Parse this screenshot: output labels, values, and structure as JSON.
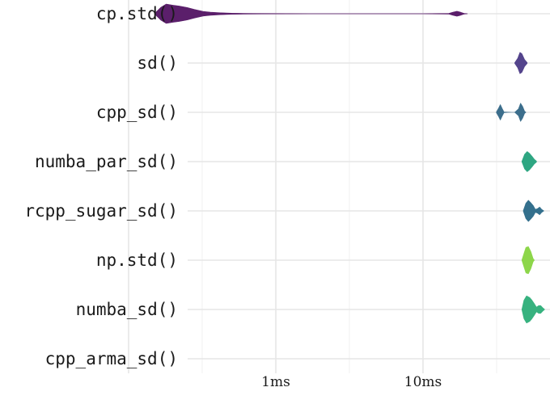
{
  "chart_data": {
    "type": "violin",
    "title": "",
    "xlabel": "",
    "ylabel": "",
    "x_scale": "log",
    "x_range_ms": [
      0.1,
      120
    ],
    "x_ticks": [
      "1ms",
      "10ms"
    ],
    "grid": true,
    "legend": "none",
    "categories": [
      "cp.std()",
      "sd()",
      "cpp_sd()",
      "numba_par_sd()",
      "rcpp_sugar_sd()",
      "np.std()",
      "numba_sd()",
      "cpp_arma_sd()"
    ],
    "series": [
      {
        "category": "cp.std()",
        "color": "#5b1f6b",
        "violin": [
          [
            0.15,
            0.01
          ],
          [
            0.165,
            0.32
          ],
          [
            0.18,
            0.5
          ],
          [
            0.2,
            0.44
          ],
          [
            0.22,
            0.4
          ],
          [
            0.25,
            0.32
          ],
          [
            0.28,
            0.22
          ],
          [
            0.32,
            0.12
          ],
          [
            0.36,
            0.08
          ],
          [
            0.42,
            0.05
          ],
          [
            0.5,
            0.03
          ],
          [
            0.6,
            0.02
          ],
          [
            0.8,
            0.012
          ],
          [
            1.2,
            0.008
          ],
          [
            2,
            0.005
          ],
          [
            5,
            0.004
          ],
          [
            10,
            0.004
          ],
          [
            15,
            0.02
          ],
          [
            16,
            0.08
          ],
          [
            17,
            0.13
          ],
          [
            18,
            0.08
          ],
          [
            19,
            0.02
          ],
          [
            20,
            0.005
          ]
        ]
      },
      {
        "category": "sd()",
        "color": "#54448c",
        "violin": [
          [
            42,
            0.02
          ],
          [
            44,
            0.25
          ],
          [
            45.5,
            0.55
          ],
          [
            47,
            0.48
          ],
          [
            49,
            0.18
          ],
          [
            51,
            0.02
          ]
        ]
      },
      {
        "category": "cpp_sd()",
        "color": "#3c6e8c",
        "violin": [
          [
            31.5,
            0.02
          ],
          [
            32.5,
            0.2
          ],
          [
            33.5,
            0.4
          ],
          [
            34.5,
            0.2
          ],
          [
            35.5,
            0.02
          ],
          [
            40,
            0.0
          ],
          [
            42,
            0.0
          ],
          [
            44.5,
            0.18
          ],
          [
            46,
            0.47
          ],
          [
            47.5,
            0.3
          ],
          [
            49,
            0.06
          ],
          [
            50,
            0.0
          ]
        ]
      },
      {
        "category": "numba_par_sd()",
        "color": "#2ea682",
        "violin": [
          [
            47,
            0.02
          ],
          [
            49,
            0.38
          ],
          [
            51,
            0.52
          ],
          [
            53,
            0.42
          ],
          [
            55,
            0.28
          ],
          [
            57,
            0.12
          ],
          [
            59,
            0.03
          ]
        ]
      },
      {
        "category": "rcpp_sugar_sd()",
        "color": "#34708d",
        "violin": [
          [
            48,
            0.02
          ],
          [
            50,
            0.4
          ],
          [
            52,
            0.55
          ],
          [
            54,
            0.42
          ],
          [
            56,
            0.28
          ],
          [
            58,
            0.08
          ],
          [
            60,
            0.12
          ],
          [
            62,
            0.2
          ],
          [
            64,
            0.08
          ],
          [
            66,
            0.01
          ]
        ]
      },
      {
        "category": "np.std()",
        "color": "#8dd64a",
        "violin": [
          [
            47,
            0.02
          ],
          [
            48.5,
            0.35
          ],
          [
            50,
            0.66
          ],
          [
            52,
            0.7
          ],
          [
            54,
            0.45
          ],
          [
            56,
            0.08
          ],
          [
            57,
            0.01
          ]
        ]
      },
      {
        "category": "numba_sd()",
        "color": "#37b27f",
        "violin": [
          [
            47,
            0.02
          ],
          [
            48.5,
            0.48
          ],
          [
            50.5,
            0.7
          ],
          [
            53,
            0.62
          ],
          [
            55,
            0.48
          ],
          [
            57,
            0.3
          ],
          [
            59,
            0.12
          ],
          [
            61,
            0.2
          ],
          [
            63,
            0.2
          ],
          [
            65,
            0.09
          ],
          [
            67,
            0.01
          ]
        ]
      },
      {
        "category": "cpp_arma_sd()",
        "color": "#21908c",
        "violin": []
      }
    ]
  }
}
